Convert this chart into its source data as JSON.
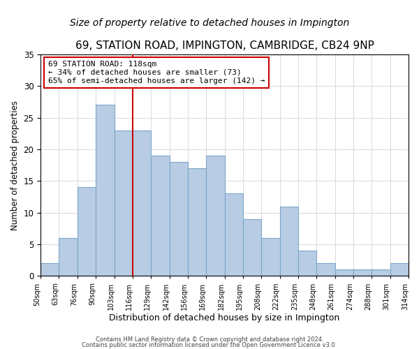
{
  "title": "69, STATION ROAD, IMPINGTON, CAMBRIDGE, CB24 9NP",
  "subtitle": "Size of property relative to detached houses in Impington",
  "xlabel": "Distribution of detached houses by size in Impington",
  "ylabel": "Number of detached properties",
  "bin_labels": [
    "50sqm",
    "63sqm",
    "76sqm",
    "90sqm",
    "103sqm",
    "116sqm",
    "129sqm",
    "142sqm",
    "156sqm",
    "169sqm",
    "182sqm",
    "195sqm",
    "208sqm",
    "222sqm",
    "235sqm",
    "248sqm",
    "261sqm",
    "274sqm",
    "288sqm",
    "301sqm",
    "314sqm"
  ],
  "bar_heights": [
    2,
    6,
    14,
    27,
    23,
    23,
    19,
    18,
    17,
    19,
    13,
    9,
    6,
    11,
    4,
    2,
    1,
    1,
    1,
    2
  ],
  "bar_color": "#b8cce4",
  "bar_edge_color": "#7ba7c9",
  "vline_x_index": 5,
  "vline_color": "#cc0000",
  "ylim": [
    0,
    35
  ],
  "yticks": [
    0,
    5,
    10,
    15,
    20,
    25,
    30,
    35
  ],
  "annotation_text": "69 STATION ROAD: 118sqm\n← 34% of detached houses are smaller (73)\n65% of semi-detached houses are larger (142) →",
  "annotation_box_facecolor": "#ffffff",
  "annotation_box_edgecolor": "#cc0000",
  "footer1": "Contains HM Land Registry data © Crown copyright and database right 2024.",
  "footer2": "Contains public sector information licensed under the Open Government Licence v3.0.",
  "title_fontsize": 11,
  "subtitle_fontsize": 10,
  "ylabel_fontsize": 8.5,
  "xlabel_fontsize": 9,
  "tick_labelsize": 8.5,
  "bar_label_fontsize": 7,
  "annotation_fontsize": 8,
  "footer_fontsize": 6
}
